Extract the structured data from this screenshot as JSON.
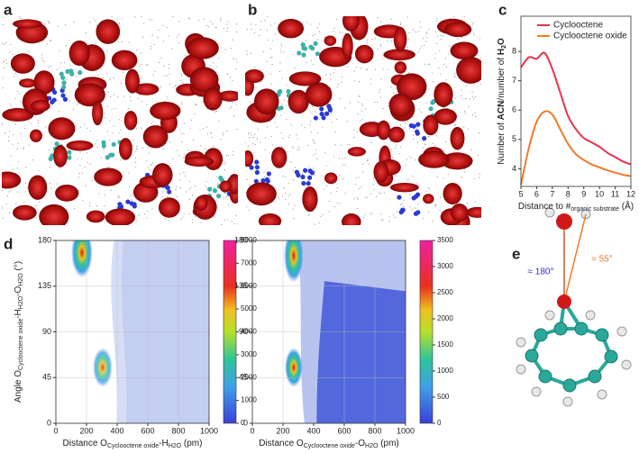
{
  "panel_labels": [
    "a",
    "b",
    "c",
    "d",
    "e"
  ],
  "chart_data": [
    {
      "type": "line",
      "ylabel": [
        {
          "text": "Number of "
        },
        {
          "text": "ACN",
          "bold": true
        },
        {
          "text": "/number of "
        },
        {
          "text": "H",
          "bold": true
        },
        {
          "text": "2",
          "bold": true,
          "sub": true
        },
        {
          "text": "O",
          "bold": true
        }
      ],
      "xlabel": [
        {
          "text": "Distance to #"
        },
        {
          "text": "organic substrate",
          "sub": true
        },
        {
          "text": " (Å)"
        }
      ],
      "x": [
        5,
        5.5,
        6,
        6.5,
        7,
        7.5,
        8,
        8.5,
        9,
        9.5,
        10,
        10.5,
        11,
        11.5,
        12
      ],
      "series": [
        {
          "name": "Cyclooctene",
          "color": "#e8344a",
          "values": [
            7.45,
            7.8,
            7.75,
            7.95,
            7.4,
            6.6,
            5.8,
            5.35,
            5.05,
            4.9,
            4.75,
            4.55,
            4.4,
            4.25,
            4.15
          ]
        },
        {
          "name": "Cyclooctene oxide",
          "color": "#f07a2a",
          "values": [
            3.45,
            4.7,
            5.6,
            5.95,
            5.85,
            5.35,
            4.85,
            4.5,
            4.3,
            4.15,
            4.05,
            3.95,
            3.87,
            3.8,
            3.75
          ]
        }
      ],
      "xlim": [
        5,
        12
      ],
      "xticks": [
        5,
        6,
        7,
        8,
        9,
        10,
        11,
        12
      ],
      "ylim": [
        3.4,
        9.2
      ],
      "yticks": [
        4,
        5,
        6,
        7,
        8
      ],
      "legend": "upper right"
    },
    {
      "type": "contour",
      "ylabel": [
        {
          "text": "Angle O"
        },
        {
          "text": "Cyclooctene oxide",
          "sub": true
        },
        {
          "text": "-H"
        },
        {
          "text": "H2O",
          "sub": true
        },
        {
          "text": "-O"
        },
        {
          "text": "H2O",
          "sub": true
        },
        {
          "text": " (°)"
        }
      ],
      "xlabel": [
        {
          "text": "Distance O"
        },
        {
          "text": "Cyclooctene oxide",
          "sub": true
        },
        {
          "text": "-H"
        },
        {
          "text": "H2O",
          "sub": true
        },
        {
          "text": " (pm)"
        }
      ],
      "xlim": [
        0,
        1000
      ],
      "xticks": [
        0,
        200,
        400,
        600,
        800,
        1000
      ],
      "ylim": [
        0,
        180
      ],
      "yticks": [
        0,
        45,
        90,
        135,
        180
      ],
      "grid": true,
      "colorbar": {
        "lim": [
          0,
          8000
        ],
        "ticks": [
          0,
          1000,
          2000,
          3000,
          4000,
          5000,
          6000,
          7000,
          8000
        ]
      }
    },
    {
      "type": "contour",
      "xlabel": [
        {
          "text": "Distance O"
        },
        {
          "text": "Cyclooctene oxide",
          "sub": true
        },
        {
          "text": "-O"
        },
        {
          "text": "H2O",
          "sub": true
        },
        {
          "text": " (pm)"
        }
      ],
      "xlim": [
        0,
        1000
      ],
      "xticks": [
        0,
        200,
        400,
        600,
        800,
        1000
      ],
      "ylim": [
        0,
        180
      ],
      "yticks": [
        0,
        45,
        90,
        135,
        180
      ],
      "grid": true,
      "colorbar": {
        "lim": [
          0,
          3500
        ],
        "ticks": [
          0,
          500,
          1000,
          1500,
          2000,
          2500,
          3000,
          3500
        ]
      }
    }
  ],
  "diagram": {
    "annotations": [
      "≈ 180°",
      "≈ 55°"
    ]
  }
}
